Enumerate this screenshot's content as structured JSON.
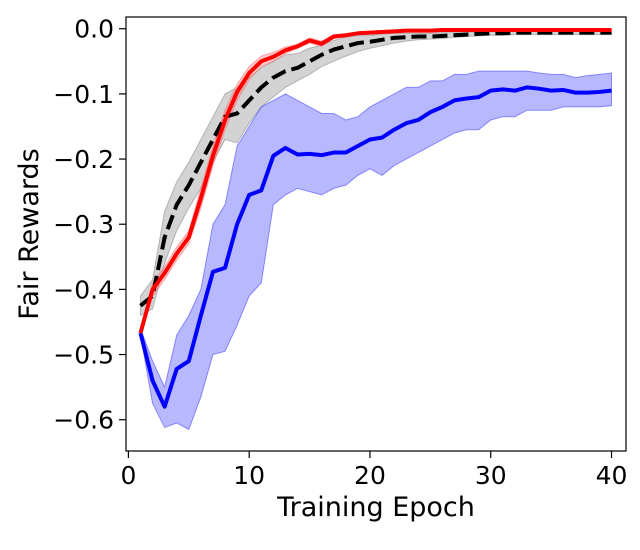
{
  "chart_data": {
    "type": "line",
    "title": "",
    "xlabel": "Training Epoch",
    "ylabel": "Fair Rewards",
    "xlim": [
      -0.2,
      41.2
    ],
    "ylim": [
      -0.648,
      0.018
    ],
    "xticks": [
      0,
      10,
      20,
      30,
      40
    ],
    "xtick_labels": [
      "0",
      "10",
      "20",
      "30",
      "40"
    ],
    "yticks": [
      0.0,
      -0.1,
      -0.2,
      -0.3,
      -0.4,
      -0.5,
      -0.6
    ],
    "ytick_labels": [
      "0.0",
      "−0.1",
      "−0.2",
      "−0.3",
      "−0.4",
      "−0.5",
      "−0.6"
    ],
    "grid": false,
    "legend": "none",
    "x": [
      1,
      2,
      3,
      4,
      5,
      6,
      7,
      8,
      9,
      10,
      11,
      12,
      13,
      14,
      15,
      16,
      17,
      18,
      19,
      20,
      21,
      22,
      23,
      24,
      25,
      26,
      27,
      28,
      29,
      30,
      31,
      32,
      33,
      34,
      35,
      36,
      37,
      38,
      39,
      40
    ],
    "series": [
      {
        "name": "black dashed",
        "color": "#000000",
        "band_color": "#808080",
        "line_style": "dashed",
        "values": [
          -0.425,
          -0.41,
          -0.32,
          -0.27,
          -0.24,
          -0.205,
          -0.17,
          -0.135,
          -0.13,
          -0.11,
          -0.09,
          -0.075,
          -0.065,
          -0.06,
          -0.05,
          -0.04,
          -0.032,
          -0.027,
          -0.022,
          -0.02,
          -0.017,
          -0.014,
          -0.013,
          -0.012,
          -0.012,
          -0.011,
          -0.01,
          -0.009,
          -0.008,
          -0.007,
          -0.007,
          -0.006,
          -0.006,
          -0.006,
          -0.006,
          -0.006,
          -0.006,
          -0.006,
          -0.006,
          -0.006
        ],
        "lower": [
          -0.44,
          -0.43,
          -0.36,
          -0.31,
          -0.275,
          -0.245,
          -0.205,
          -0.17,
          -0.175,
          -0.145,
          -0.12,
          -0.105,
          -0.09,
          -0.08,
          -0.07,
          -0.058,
          -0.05,
          -0.042,
          -0.035,
          -0.03,
          -0.026,
          -0.022,
          -0.019,
          -0.017,
          -0.016,
          -0.015,
          -0.013,
          -0.012,
          -0.011,
          -0.01,
          -0.01,
          -0.009,
          -0.009,
          -0.009,
          -0.009,
          -0.009,
          -0.009,
          -0.009,
          -0.009,
          -0.009
        ],
        "upper": [
          -0.41,
          -0.385,
          -0.28,
          -0.235,
          -0.205,
          -0.17,
          -0.135,
          -0.1,
          -0.09,
          -0.075,
          -0.06,
          -0.05,
          -0.04,
          -0.038,
          -0.03,
          -0.025,
          -0.018,
          -0.013,
          -0.01,
          -0.01,
          -0.008,
          -0.007,
          -0.007,
          -0.007,
          -0.007,
          -0.006,
          -0.006,
          -0.005,
          -0.005,
          -0.004,
          -0.004,
          -0.004,
          -0.004,
          -0.004,
          -0.004,
          -0.004,
          -0.004,
          -0.004,
          -0.004,
          -0.004
        ]
      },
      {
        "name": "blue",
        "color": "#0000ff",
        "band_color": "#3333ff",
        "line_style": "solid",
        "values": [
          -0.467,
          -0.54,
          -0.58,
          -0.522,
          -0.51,
          -0.44,
          -0.373,
          -0.367,
          -0.3,
          -0.255,
          -0.248,
          -0.195,
          -0.183,
          -0.193,
          -0.192,
          -0.194,
          -0.19,
          -0.19,
          -0.18,
          -0.17,
          -0.167,
          -0.155,
          -0.145,
          -0.14,
          -0.128,
          -0.12,
          -0.11,
          -0.107,
          -0.105,
          -0.095,
          -0.093,
          -0.095,
          -0.09,
          -0.092,
          -0.095,
          -0.094,
          -0.098,
          -0.098,
          -0.097,
          -0.095
        ],
        "lower": [
          -0.47,
          -0.575,
          -0.612,
          -0.605,
          -0.615,
          -0.565,
          -0.5,
          -0.495,
          -0.455,
          -0.41,
          -0.39,
          -0.27,
          -0.255,
          -0.245,
          -0.25,
          -0.255,
          -0.245,
          -0.24,
          -0.225,
          -0.215,
          -0.225,
          -0.21,
          -0.2,
          -0.19,
          -0.18,
          -0.17,
          -0.16,
          -0.155,
          -0.155,
          -0.14,
          -0.135,
          -0.135,
          -0.125,
          -0.125,
          -0.125,
          -0.12,
          -0.12,
          -0.12,
          -0.12,
          -0.118
        ],
        "upper": [
          -0.46,
          -0.51,
          -0.55,
          -0.47,
          -0.44,
          -0.4,
          -0.3,
          -0.27,
          -0.18,
          -0.15,
          -0.12,
          -0.11,
          -0.1,
          -0.11,
          -0.12,
          -0.13,
          -0.13,
          -0.14,
          -0.135,
          -0.12,
          -0.11,
          -0.1,
          -0.09,
          -0.09,
          -0.08,
          -0.08,
          -0.07,
          -0.07,
          -0.065,
          -0.065,
          -0.065,
          -0.065,
          -0.065,
          -0.068,
          -0.07,
          -0.07,
          -0.075,
          -0.072,
          -0.07,
          -0.068
        ]
      },
      {
        "name": "red",
        "color": "#ff0000",
        "band_color": "#ff6666",
        "line_style": "solid",
        "values": [
          -0.467,
          -0.4,
          -0.375,
          -0.345,
          -0.32,
          -0.26,
          -0.195,
          -0.14,
          -0.097,
          -0.068,
          -0.05,
          -0.043,
          -0.033,
          -0.027,
          -0.018,
          -0.023,
          -0.012,
          -0.01,
          -0.007,
          -0.006,
          -0.005,
          -0.004,
          -0.003,
          -0.003,
          -0.003,
          -0.002,
          -0.002,
          -0.002,
          -0.002,
          -0.002,
          -0.002,
          -0.002,
          -0.002,
          -0.002,
          -0.002,
          -0.002,
          -0.002,
          -0.002,
          -0.002,
          -0.002
        ],
        "lower": [
          -0.47,
          -0.41,
          -0.385,
          -0.355,
          -0.33,
          -0.275,
          -0.21,
          -0.155,
          -0.11,
          -0.078,
          -0.058,
          -0.05,
          -0.038,
          -0.03,
          -0.022,
          -0.027,
          -0.015,
          -0.012,
          -0.009,
          -0.008,
          -0.007,
          -0.006,
          -0.005,
          -0.005,
          -0.004,
          -0.004,
          -0.004,
          -0.004,
          -0.004,
          -0.004,
          -0.004,
          -0.004,
          -0.004,
          -0.004,
          -0.004,
          -0.004,
          -0.004,
          -0.004,
          -0.004,
          -0.004
        ],
        "upper": [
          -0.464,
          -0.39,
          -0.365,
          -0.335,
          -0.31,
          -0.245,
          -0.18,
          -0.125,
          -0.085,
          -0.058,
          -0.042,
          -0.036,
          -0.028,
          -0.024,
          -0.014,
          -0.019,
          -0.009,
          -0.008,
          -0.005,
          -0.004,
          -0.003,
          -0.002,
          -0.001,
          -0.001,
          -0.001,
          -0.001,
          -0.001,
          -0.001,
          -0.001,
          -0.001,
          -0.001,
          -0.001,
          -0.001,
          -0.001,
          -0.001,
          -0.001,
          -0.001,
          -0.001,
          -0.001,
          -0.001
        ]
      }
    ]
  }
}
